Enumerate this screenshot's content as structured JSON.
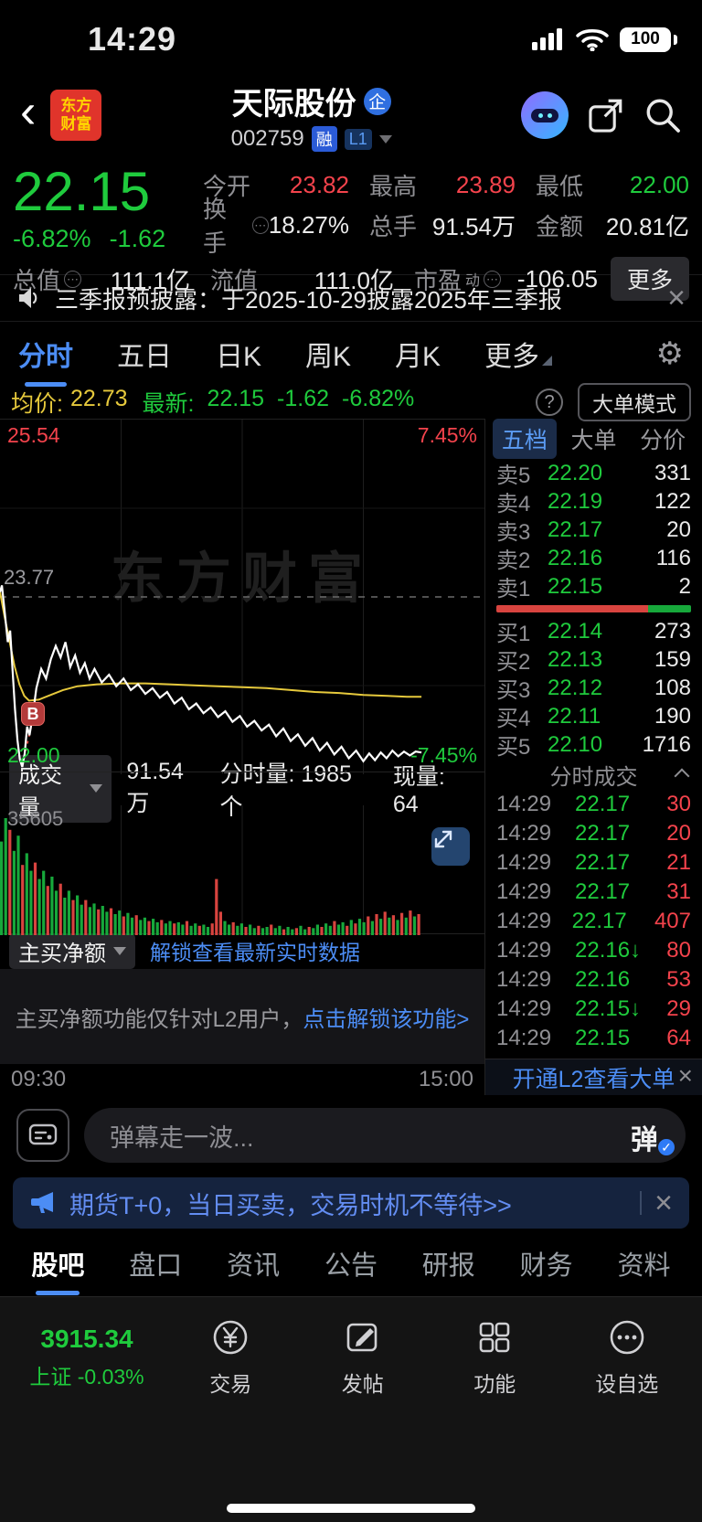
{
  "status_bar": {
    "time": "14:29",
    "battery": "100"
  },
  "header": {
    "logo_line1": "东方",
    "logo_line2": "财富",
    "title": "天际股份",
    "title_badge": "企",
    "code": "002759",
    "margin_badge": "融",
    "level_badge": "L1"
  },
  "quote": {
    "price": "22.15",
    "change_pct": "-6.82%",
    "change": "-1.62",
    "open_label": "今开",
    "open": "23.82",
    "high_label": "最高",
    "high": "23.89",
    "low_label": "最低",
    "low": "22.00",
    "turnover_label": "换手",
    "turnover": "18.27%",
    "volume_label": "总手",
    "volume": "91.54万",
    "amount_label": "金额",
    "amount": "20.81亿",
    "mktcap_label": "总值",
    "mktcap": "111.1亿",
    "floatcap_label": "流值",
    "floatcap": "111.0亿",
    "pe_label": "市盈",
    "pe_sup": "动",
    "pe": "-106.05",
    "more_label": "更多"
  },
  "announcement": {
    "text": "三季报预披露：于2025-10-29披露2025年三季报"
  },
  "chart_tabs": {
    "items": [
      "分时",
      "五日",
      "日K",
      "周K",
      "月K",
      "更多"
    ],
    "active": 0,
    "has_corner_last": true
  },
  "info_bar": {
    "avg_label": "均价:",
    "avg": "22.73",
    "last_label": "最新:",
    "last": "22.15",
    "chg": "-1.62",
    "chg_pct": "-6.82%",
    "help": "?",
    "mode_button": "大单模式"
  },
  "chart_data": {
    "type": "line",
    "title": "分时走势",
    "y_max": 25.54,
    "y_min": 22.0,
    "prev_close": 23.77,
    "label_top": "25.54",
    "label_top_pct": "7.45%",
    "label_bottom": "22.00",
    "label_bottom_pct": "-7.45%",
    "label_prev_close": "23.77",
    "x_start": "09:30",
    "x_end": "15:00",
    "watermark": "东方财富",
    "buy_marker": {
      "label": "B",
      "x": 0.068,
      "price": 22.55
    },
    "series": [
      {
        "name": "price",
        "color": "#ffffff",
        "points": [
          [
            0.0,
            23.82
          ],
          [
            0.004,
            23.89
          ],
          [
            0.01,
            23.6
          ],
          [
            0.016,
            23.3
          ],
          [
            0.021,
            23.42
          ],
          [
            0.026,
            23.0
          ],
          [
            0.031,
            22.6
          ],
          [
            0.036,
            22.28
          ],
          [
            0.041,
            22.08
          ],
          [
            0.046,
            22.0
          ],
          [
            0.051,
            22.14
          ],
          [
            0.056,
            22.42
          ],
          [
            0.061,
            22.33
          ],
          [
            0.068,
            22.55
          ],
          [
            0.075,
            22.82
          ],
          [
            0.085,
            23.02
          ],
          [
            0.095,
            22.92
          ],
          [
            0.105,
            23.12
          ],
          [
            0.115,
            23.26
          ],
          [
            0.125,
            23.14
          ],
          [
            0.135,
            23.3
          ],
          [
            0.145,
            23.04
          ],
          [
            0.155,
            23.16
          ],
          [
            0.165,
            22.98
          ],
          [
            0.175,
            23.08
          ],
          [
            0.185,
            22.92
          ],
          [
            0.195,
            23.02
          ],
          [
            0.21,
            22.88
          ],
          [
            0.225,
            22.96
          ],
          [
            0.24,
            22.84
          ],
          [
            0.255,
            22.92
          ],
          [
            0.27,
            22.8
          ],
          [
            0.285,
            22.86
          ],
          [
            0.3,
            22.76
          ],
          [
            0.315,
            22.82
          ],
          [
            0.33,
            22.72
          ],
          [
            0.345,
            22.78
          ],
          [
            0.36,
            22.66
          ],
          [
            0.375,
            22.72
          ],
          [
            0.39,
            22.6
          ],
          [
            0.405,
            22.66
          ],
          [
            0.42,
            22.56
          ],
          [
            0.435,
            22.62
          ],
          [
            0.45,
            22.52
          ],
          [
            0.465,
            22.58
          ],
          [
            0.48,
            22.47
          ],
          [
            0.495,
            22.53
          ],
          [
            0.51,
            22.42
          ],
          [
            0.525,
            22.48
          ],
          [
            0.54,
            22.38
          ],
          [
            0.555,
            22.44
          ],
          [
            0.57,
            22.32
          ],
          [
            0.585,
            22.4
          ],
          [
            0.6,
            22.27
          ],
          [
            0.615,
            22.34
          ],
          [
            0.63,
            22.22
          ],
          [
            0.645,
            22.3
          ],
          [
            0.66,
            22.17
          ],
          [
            0.675,
            22.25
          ],
          [
            0.69,
            22.13
          ],
          [
            0.705,
            22.21
          ],
          [
            0.72,
            22.09
          ],
          [
            0.735,
            22.17
          ],
          [
            0.75,
            22.06
          ],
          [
            0.762,
            22.14
          ],
          [
            0.774,
            22.07
          ],
          [
            0.786,
            22.15
          ],
          [
            0.798,
            22.09
          ],
          [
            0.81,
            22.17
          ],
          [
            0.822,
            22.11
          ],
          [
            0.834,
            22.16
          ],
          [
            0.846,
            22.12
          ],
          [
            0.858,
            22.16
          ],
          [
            0.87,
            22.15
          ]
        ]
      },
      {
        "name": "avg",
        "color": "#e6c93c",
        "points": [
          [
            0.0,
            23.82
          ],
          [
            0.01,
            23.55
          ],
          [
            0.02,
            23.3
          ],
          [
            0.03,
            23.05
          ],
          [
            0.04,
            22.86
          ],
          [
            0.05,
            22.74
          ],
          [
            0.06,
            22.69
          ],
          [
            0.08,
            22.7
          ],
          [
            0.1,
            22.74
          ],
          [
            0.13,
            22.8
          ],
          [
            0.16,
            22.84
          ],
          [
            0.2,
            22.86
          ],
          [
            0.25,
            22.87
          ],
          [
            0.3,
            22.87
          ],
          [
            0.35,
            22.86
          ],
          [
            0.4,
            22.85
          ],
          [
            0.45,
            22.84
          ],
          [
            0.5,
            22.83
          ],
          [
            0.55,
            22.82
          ],
          [
            0.6,
            22.8
          ],
          [
            0.65,
            22.78
          ],
          [
            0.7,
            22.77
          ],
          [
            0.75,
            22.75
          ],
          [
            0.8,
            22.74
          ],
          [
            0.84,
            22.73
          ],
          [
            0.87,
            22.73
          ]
        ]
      }
    ],
    "drop_line": {
      "from": [
        0.046,
        22.02
      ],
      "to": [
        0.068,
        22.5
      ],
      "color": "#e0433c"
    },
    "volume": {
      "max_label": "35605",
      "bars": [
        [
          0.8,
          "g"
        ],
        [
          1.0,
          "g"
        ],
        [
          0.9,
          "r"
        ],
        [
          0.72,
          "g"
        ],
        [
          0.85,
          "g"
        ],
        [
          0.6,
          "r"
        ],
        [
          0.7,
          "g"
        ],
        [
          0.55,
          "g"
        ],
        [
          0.62,
          "r"
        ],
        [
          0.48,
          "g"
        ],
        [
          0.55,
          "g"
        ],
        [
          0.42,
          "r"
        ],
        [
          0.5,
          "g"
        ],
        [
          0.38,
          "g"
        ],
        [
          0.44,
          "r"
        ],
        [
          0.32,
          "g"
        ],
        [
          0.38,
          "g"
        ],
        [
          0.3,
          "r"
        ],
        [
          0.34,
          "g"
        ],
        [
          0.26,
          "g"
        ],
        [
          0.3,
          "r"
        ],
        [
          0.24,
          "g"
        ],
        [
          0.27,
          "g"
        ],
        [
          0.22,
          "r"
        ],
        [
          0.25,
          "g"
        ],
        [
          0.2,
          "g"
        ],
        [
          0.23,
          "r"
        ],
        [
          0.18,
          "g"
        ],
        [
          0.21,
          "g"
        ],
        [
          0.16,
          "r"
        ],
        [
          0.19,
          "g"
        ],
        [
          0.15,
          "g"
        ],
        [
          0.17,
          "r"
        ],
        [
          0.13,
          "g"
        ],
        [
          0.15,
          "g"
        ],
        [
          0.12,
          "r"
        ],
        [
          0.14,
          "g"
        ],
        [
          0.11,
          "g"
        ],
        [
          0.13,
          "r"
        ],
        [
          0.1,
          "g"
        ],
        [
          0.12,
          "g"
        ],
        [
          0.1,
          "r"
        ],
        [
          0.11,
          "g"
        ],
        [
          0.09,
          "g"
        ],
        [
          0.12,
          "r"
        ],
        [
          0.08,
          "g"
        ],
        [
          0.1,
          "g"
        ],
        [
          0.08,
          "r"
        ],
        [
          0.09,
          "g"
        ],
        [
          0.07,
          "g"
        ],
        [
          0.1,
          "r"
        ],
        [
          0.48,
          "r"
        ],
        [
          0.2,
          "r"
        ],
        [
          0.12,
          "g"
        ],
        [
          0.09,
          "g"
        ],
        [
          0.11,
          "r"
        ],
        [
          0.08,
          "g"
        ],
        [
          0.1,
          "g"
        ],
        [
          0.07,
          "r"
        ],
        [
          0.09,
          "g"
        ],
        [
          0.06,
          "g"
        ],
        [
          0.08,
          "r"
        ],
        [
          0.06,
          "g"
        ],
        [
          0.07,
          "g"
        ],
        [
          0.09,
          "r"
        ],
        [
          0.06,
          "g"
        ],
        [
          0.08,
          "g"
        ],
        [
          0.05,
          "r"
        ],
        [
          0.07,
          "g"
        ],
        [
          0.05,
          "g"
        ],
        [
          0.06,
          "r"
        ],
        [
          0.08,
          "g"
        ],
        [
          0.05,
          "g"
        ],
        [
          0.07,
          "r"
        ],
        [
          0.06,
          "g"
        ],
        [
          0.09,
          "g"
        ],
        [
          0.07,
          "r"
        ],
        [
          0.1,
          "g"
        ],
        [
          0.08,
          "g"
        ],
        [
          0.12,
          "r"
        ],
        [
          0.09,
          "g"
        ],
        [
          0.11,
          "g"
        ],
        [
          0.08,
          "r"
        ],
        [
          0.13,
          "g"
        ],
        [
          0.1,
          "r"
        ],
        [
          0.14,
          "g"
        ],
        [
          0.11,
          "g"
        ],
        [
          0.16,
          "r"
        ],
        [
          0.12,
          "g"
        ],
        [
          0.18,
          "r"
        ],
        [
          0.14,
          "g"
        ],
        [
          0.2,
          "r"
        ],
        [
          0.15,
          "g"
        ],
        [
          0.17,
          "r"
        ],
        [
          0.13,
          "g"
        ],
        [
          0.19,
          "r"
        ],
        [
          0.15,
          "g"
        ],
        [
          0.21,
          "r"
        ],
        [
          0.16,
          "g"
        ],
        [
          0.18,
          "r"
        ]
      ]
    }
  },
  "order_book": {
    "tabs": [
      "五档",
      "大单",
      "分价"
    ],
    "active_tab": 0,
    "sells": [
      {
        "label": "卖5",
        "price": "22.20",
        "qty": "331"
      },
      {
        "label": "卖4",
        "price": "22.19",
        "qty": "122"
      },
      {
        "label": "卖3",
        "price": "22.17",
        "qty": "20"
      },
      {
        "label": "卖2",
        "price": "22.16",
        "qty": "116"
      },
      {
        "label": "卖1",
        "price": "22.15",
        "qty": "2"
      }
    ],
    "ratio": {
      "red": 78,
      "green": 22
    },
    "buys": [
      {
        "label": "买1",
        "price": "22.14",
        "qty": "273"
      },
      {
        "label": "买2",
        "price": "22.13",
        "qty": "159"
      },
      {
        "label": "买3",
        "price": "22.12",
        "qty": "108"
      },
      {
        "label": "买4",
        "price": "22.11",
        "qty": "190"
      },
      {
        "label": "买5",
        "price": "22.10",
        "qty": "1716"
      }
    ],
    "trades_header": "分时成交",
    "trades": [
      {
        "time": "14:29",
        "price": "22.17",
        "dir": "",
        "qty": "30"
      },
      {
        "time": "14:29",
        "price": "22.17",
        "dir": "",
        "qty": "20"
      },
      {
        "time": "14:29",
        "price": "22.17",
        "dir": "",
        "qty": "21"
      },
      {
        "time": "14:29",
        "price": "22.17",
        "dir": "",
        "qty": "31"
      },
      {
        "time": "14:29",
        "price": "22.17",
        "dir": "",
        "qty": "407"
      },
      {
        "time": "14:29",
        "price": "22.16",
        "dir": "↓",
        "qty": "80"
      },
      {
        "time": "14:29",
        "price": "22.16",
        "dir": "",
        "qty": "53"
      },
      {
        "time": "14:29",
        "price": "22.15",
        "dir": "↓",
        "qty": "29"
      },
      {
        "time": "14:29",
        "price": "22.15",
        "dir": "",
        "qty": "64"
      }
    ],
    "l2_link": "开通L2查看大单"
  },
  "volume_bar": {
    "selector": "成交量",
    "total": "91.54万",
    "minute": "分时量: 1985 个",
    "current": "现量: 64"
  },
  "net_buy": {
    "selector": "主买净额",
    "unlock_link": "解锁查看最新实时数据",
    "locked_text": "主买净额功能仅针对L2用户，",
    "locked_link": "点击解锁该功能>"
  },
  "comment": {
    "placeholder": "弹幕走一波...",
    "send_label": "弹",
    "badge": "✓"
  },
  "ad_banner": {
    "text": "期货T+0，当日买卖，交易时机不等待>>"
  },
  "bottom_tabs": {
    "items": [
      "股吧",
      "盘口",
      "资讯",
      "公告",
      "研报",
      "财务",
      "资料"
    ],
    "active": 0
  },
  "bottom_nav": {
    "index_value": "3915.34",
    "index_label": "上证 -0.03%",
    "items": [
      {
        "label": "交易"
      },
      {
        "label": "发帖"
      },
      {
        "label": "功能"
      },
      {
        "label": "设自选"
      }
    ]
  },
  "colors": {
    "up": "#f4434c",
    "down": "#1fcb3d",
    "accent": "#4c8df5",
    "avg_line": "#e6c93c"
  }
}
